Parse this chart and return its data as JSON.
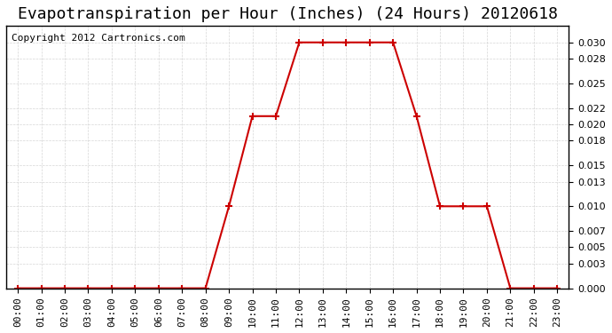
{
  "title": "Evapotranspiration per Hour (Inches) (24 Hours) 20120618",
  "copyright_text": "Copyright 2012 Cartronics.com",
  "hours": [
    0,
    1,
    2,
    3,
    4,
    5,
    6,
    7,
    8,
    9,
    10,
    11,
    12,
    13,
    14,
    15,
    16,
    17,
    18,
    19,
    20,
    21,
    22,
    23
  ],
  "values": [
    0.0,
    0.0,
    0.0,
    0.0,
    0.0,
    0.0,
    0.0,
    0.0,
    0.0,
    0.01,
    0.021,
    0.021,
    0.03,
    0.03,
    0.03,
    0.03,
    0.03,
    0.021,
    0.01,
    0.01,
    0.01,
    0.0,
    0.0,
    0.0
  ],
  "line_color": "#cc0000",
  "marker_color": "#cc0000",
  "bg_color": "#ffffff",
  "plot_bg_color": "#ffffff",
  "grid_color": "#cccccc",
  "title_fontsize": 13,
  "copyright_fontsize": 8,
  "tick_fontsize": 8,
  "ylim": [
    0,
    0.032
  ],
  "yticks": [
    0.0,
    0.003,
    0.005,
    0.007,
    0.01,
    0.013,
    0.015,
    0.018,
    0.02,
    0.022,
    0.025,
    0.028,
    0.03
  ]
}
